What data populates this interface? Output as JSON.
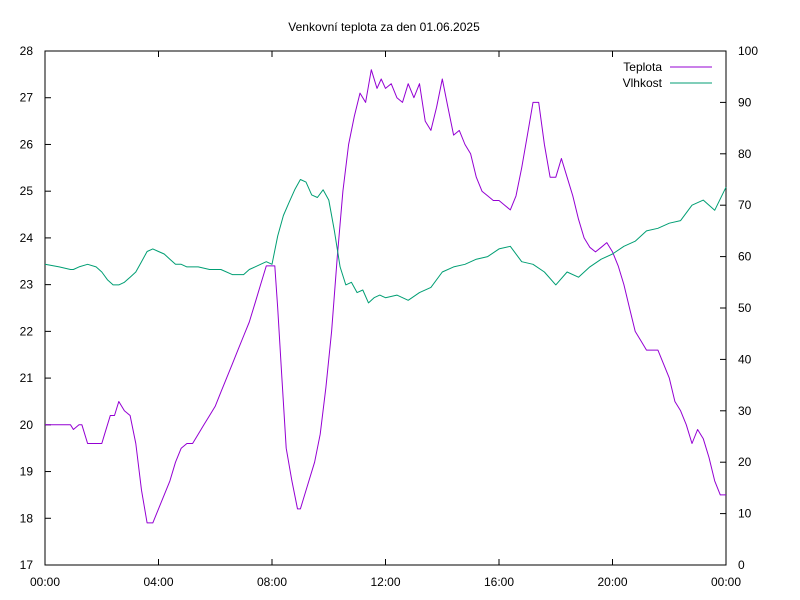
{
  "chart_data": {
    "type": "line",
    "title": "Venkovní teplota za den 01.06.2025",
    "xlabel": "",
    "ylabel": "",
    "y2label": "",
    "x_unit": "hours",
    "xlim": [
      0,
      24
    ],
    "ylim": [
      17,
      28
    ],
    "y2lim": [
      0,
      100
    ],
    "x_ticks": [
      0,
      4,
      8,
      12,
      16,
      20,
      24
    ],
    "x_tick_labels": [
      "00:00",
      "04:00",
      "08:00",
      "12:00",
      "16:00",
      "20:00",
      "00:00"
    ],
    "y_ticks": [
      17,
      18,
      19,
      20,
      21,
      22,
      23,
      24,
      25,
      26,
      27,
      28
    ],
    "y_tick_labels": [
      "17",
      "18",
      "19",
      "20",
      "21",
      "22",
      "23",
      "24",
      "25",
      "26",
      "27",
      "28"
    ],
    "y2_ticks": [
      0,
      10,
      20,
      30,
      40,
      50,
      60,
      70,
      80,
      90,
      100
    ],
    "y2_tick_labels": [
      "0",
      "10",
      "20",
      "30",
      "40",
      "50",
      "60",
      "70",
      "80",
      "90",
      "100"
    ],
    "grid": false,
    "legend_position": "top-right",
    "series": [
      {
        "name": "Teplota",
        "axis": "left",
        "color": "#9400d3",
        "x": [
          0,
          0.5,
          0.9,
          1.0,
          1.2,
          1.3,
          1.5,
          1.8,
          2.0,
          2.1,
          2.3,
          2.45,
          2.6,
          2.8,
          3.0,
          3.2,
          3.4,
          3.6,
          3.8,
          4.0,
          4.2,
          4.4,
          4.6,
          4.8,
          5.0,
          5.2,
          5.4,
          5.6,
          5.8,
          6.0,
          6.2,
          6.4,
          6.6,
          6.8,
          7.0,
          7.2,
          7.4,
          7.6,
          7.8,
          8.0,
          8.1,
          8.2,
          8.35,
          8.5,
          8.7,
          8.9,
          9.0,
          9.1,
          9.3,
          9.5,
          9.7,
          9.9,
          10.1,
          10.3,
          10.5,
          10.7,
          10.9,
          11.1,
          11.3,
          11.5,
          11.7,
          11.85,
          12.0,
          12.2,
          12.4,
          12.6,
          12.8,
          13.0,
          13.2,
          13.4,
          13.6,
          13.8,
          14.0,
          14.2,
          14.4,
          14.6,
          14.8,
          15.0,
          15.2,
          15.4,
          15.6,
          15.8,
          16.0,
          16.2,
          16.4,
          16.6,
          16.8,
          17.0,
          17.2,
          17.4,
          17.6,
          17.8,
          18.0,
          18.2,
          18.4,
          18.6,
          18.8,
          19.0,
          19.2,
          19.4,
          19.6,
          19.8,
          20.0,
          20.2,
          20.4,
          20.6,
          20.8,
          21.0,
          21.2,
          21.4,
          21.6,
          21.8,
          22.0,
          22.2,
          22.4,
          22.6,
          22.8,
          23.0,
          23.2,
          23.4,
          23.6,
          23.8,
          24.0
        ],
        "values": [
          20.0,
          20.0,
          20.0,
          19.9,
          20.0,
          20.0,
          19.6,
          19.6,
          19.6,
          19.8,
          20.2,
          20.2,
          20.5,
          20.3,
          20.2,
          19.6,
          18.6,
          17.9,
          17.9,
          18.2,
          18.5,
          18.8,
          19.2,
          19.5,
          19.6,
          19.6,
          19.8,
          20.0,
          20.2,
          20.4,
          20.7,
          21.0,
          21.3,
          21.6,
          21.9,
          22.2,
          22.6,
          23.0,
          23.4,
          23.4,
          23.4,
          22.5,
          21.0,
          19.5,
          18.8,
          18.2,
          18.2,
          18.4,
          18.8,
          19.2,
          19.8,
          20.8,
          22.0,
          23.6,
          25.0,
          26.0,
          26.6,
          27.1,
          26.9,
          27.6,
          27.2,
          27.4,
          27.2,
          27.3,
          27.0,
          26.9,
          27.3,
          27.0,
          27.3,
          26.5,
          26.3,
          26.8,
          27.4,
          26.8,
          26.2,
          26.3,
          26.0,
          25.8,
          25.3,
          25.0,
          24.9,
          24.8,
          24.8,
          24.7,
          24.6,
          24.9,
          25.5,
          26.2,
          26.9,
          26.9,
          26.0,
          25.3,
          25.3,
          25.7,
          25.3,
          24.9,
          24.4,
          24.0,
          23.8,
          23.7,
          23.8,
          23.9,
          23.7,
          23.4,
          23.0,
          22.5,
          22.0,
          21.8,
          21.6,
          21.6,
          21.6,
          21.3,
          21.0,
          20.5,
          20.3,
          20.0,
          19.6,
          19.9,
          19.7,
          19.3,
          18.8,
          18.5,
          18.5
        ]
      },
      {
        "name": "Vlhkost",
        "axis": "right",
        "color": "#009e73",
        "x": [
          0,
          0.5,
          0.9,
          1.0,
          1.2,
          1.5,
          1.8,
          2.0,
          2.2,
          2.4,
          2.6,
          2.8,
          3.0,
          3.2,
          3.4,
          3.6,
          3.8,
          4.0,
          4.2,
          4.4,
          4.6,
          4.8,
          5.0,
          5.4,
          5.8,
          6.2,
          6.6,
          6.8,
          7.0,
          7.2,
          7.4,
          7.6,
          7.8,
          8.0,
          8.2,
          8.4,
          8.6,
          8.8,
          9.0,
          9.2,
          9.4,
          9.6,
          9.8,
          10.0,
          10.2,
          10.4,
          10.6,
          10.8,
          11.0,
          11.2,
          11.4,
          11.6,
          11.8,
          12.0,
          12.4,
          12.8,
          13.2,
          13.6,
          14.0,
          14.4,
          14.8,
          15.2,
          15.6,
          16.0,
          16.4,
          16.8,
          17.2,
          17.6,
          18.0,
          18.4,
          18.8,
          19.2,
          19.6,
          20.0,
          20.4,
          20.8,
          21.2,
          21.6,
          22.0,
          22.4,
          22.8,
          23.2,
          23.6,
          24.0
        ],
        "values": [
          58.5,
          58.0,
          57.5,
          57.5,
          58.0,
          58.5,
          58.0,
          57.0,
          55.5,
          54.5,
          54.5,
          55.0,
          56.0,
          57.0,
          59.0,
          61.0,
          61.5,
          61.0,
          60.5,
          59.5,
          58.5,
          58.5,
          58.0,
          58.0,
          57.5,
          57.5,
          56.5,
          56.5,
          56.5,
          57.5,
          58.0,
          58.5,
          59.0,
          58.5,
          64.0,
          68.0,
          70.5,
          73.0,
          75.0,
          74.5,
          72.0,
          71.5,
          73.0,
          71.0,
          65.0,
          58.0,
          54.5,
          55.0,
          53.0,
          53.5,
          51.0,
          52.0,
          52.5,
          52.0,
          52.5,
          51.5,
          53.0,
          54.0,
          57.0,
          58.0,
          58.5,
          59.5,
          60.0,
          61.5,
          62.0,
          59.0,
          58.5,
          57.0,
          54.5,
          57.0,
          56.0,
          58.0,
          59.5,
          60.5,
          62.0,
          63.0,
          65.0,
          65.5,
          66.5,
          67.0,
          70.0,
          71.0,
          69.0,
          73.5
        ]
      }
    ]
  }
}
